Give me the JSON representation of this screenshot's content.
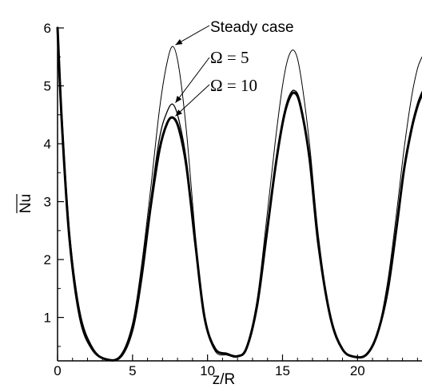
{
  "chart_data": {
    "type": "line",
    "xlabel": "z/R",
    "ylabel": "Nu",
    "xlim": [
      0,
      24.3
    ],
    "ylim": [
      0.25,
      6
    ],
    "x_ticks": [
      "0",
      "5",
      "10",
      "15",
      "20"
    ],
    "y_ticks": [
      "1",
      "2",
      "3",
      "4",
      "5",
      "6"
    ],
    "legend": "annotations-top-center",
    "series": [
      {
        "name": "Steady case",
        "color": "#000000",
        "x": [
          0,
          0.3,
          0.8,
          1.5,
          2.3,
          3.2,
          4.2,
          5.0,
          5.6,
          6.2,
          6.8,
          7.3,
          7.7,
          8.1,
          8.6,
          9.2,
          9.8,
          10.5,
          11.3,
          12.0,
          12.6,
          13.3,
          13.9,
          14.5,
          15.0,
          15.4,
          15.8,
          16.2,
          16.8,
          17.4,
          18.2,
          19.0,
          19.8,
          20.6,
          21.3,
          22.0,
          22.6,
          23.1,
          23.6,
          24.0,
          24.3
        ],
        "y": [
          6.0,
          4.5,
          2.5,
          1.1,
          0.5,
          0.28,
          0.35,
          0.9,
          1.9,
          3.2,
          4.6,
          5.4,
          5.68,
          5.3,
          4.2,
          2.4,
          1.0,
          0.42,
          0.35,
          0.32,
          0.5,
          1.3,
          2.6,
          4.0,
          5.0,
          5.5,
          5.6,
          5.2,
          4.0,
          2.4,
          1.0,
          0.45,
          0.32,
          0.36,
          0.7,
          1.6,
          2.8,
          3.9,
          4.8,
          5.3,
          5.5
        ]
      },
      {
        "name": "Ω = 5",
        "color": "#000000",
        "x": [
          0,
          0.3,
          0.8,
          1.5,
          2.3,
          3.2,
          4.2,
          5.0,
          5.6,
          6.2,
          6.8,
          7.3,
          7.7,
          8.1,
          8.6,
          9.2,
          9.8,
          10.5,
          11.3,
          12.0,
          12.6,
          13.3,
          13.9,
          14.5,
          15.0,
          15.4,
          15.8,
          16.2,
          16.8,
          17.4,
          18.2,
          19.0,
          19.8,
          20.6,
          21.3,
          22.0,
          22.6,
          23.1,
          23.6,
          24.0,
          24.3
        ],
        "y": [
          6.0,
          4.4,
          2.4,
          1.05,
          0.48,
          0.28,
          0.33,
          0.85,
          1.8,
          3.0,
          4.1,
          4.55,
          4.68,
          4.4,
          3.7,
          2.3,
          1.0,
          0.45,
          0.36,
          0.32,
          0.48,
          1.25,
          2.4,
          3.6,
          4.4,
          4.8,
          4.92,
          4.7,
          3.8,
          2.3,
          1.0,
          0.45,
          0.32,
          0.36,
          0.7,
          1.5,
          2.6,
          3.6,
          4.3,
          4.7,
          4.9
        ]
      },
      {
        "name": "Ω = 10",
        "color": "#000000",
        "x": [
          0,
          0.3,
          0.8,
          1.5,
          2.3,
          3.2,
          4.2,
          5.0,
          5.6,
          6.2,
          6.8,
          7.3,
          7.7,
          8.1,
          8.6,
          9.2,
          9.8,
          10.5,
          11.3,
          12.0,
          12.6,
          13.3,
          13.9,
          14.5,
          15.0,
          15.4,
          15.8,
          16.2,
          16.8,
          17.4,
          18.2,
          19.0,
          19.8,
          20.6,
          21.3,
          22.0,
          22.6,
          23.1,
          23.6,
          24.0,
          24.3
        ],
        "y": [
          6.0,
          4.3,
          2.35,
          1.0,
          0.46,
          0.28,
          0.32,
          0.8,
          1.7,
          2.9,
          3.9,
          4.35,
          4.45,
          4.25,
          3.6,
          2.25,
          1.0,
          0.46,
          0.37,
          0.33,
          0.47,
          1.2,
          2.35,
          3.55,
          4.35,
          4.75,
          4.88,
          4.65,
          3.75,
          2.25,
          1.0,
          0.45,
          0.32,
          0.36,
          0.7,
          1.45,
          2.55,
          3.55,
          4.25,
          4.65,
          4.85
        ]
      }
    ],
    "annotations": [
      {
        "text": "Steady case",
        "series": 0,
        "points_to": [
          7.7,
          5.68
        ]
      },
      {
        "text": "Ω = 5",
        "series": 1,
        "points_to": [
          7.7,
          4.68
        ]
      },
      {
        "text": "Ω = 10",
        "series": 2,
        "points_to": [
          7.7,
          4.45
        ]
      }
    ]
  }
}
